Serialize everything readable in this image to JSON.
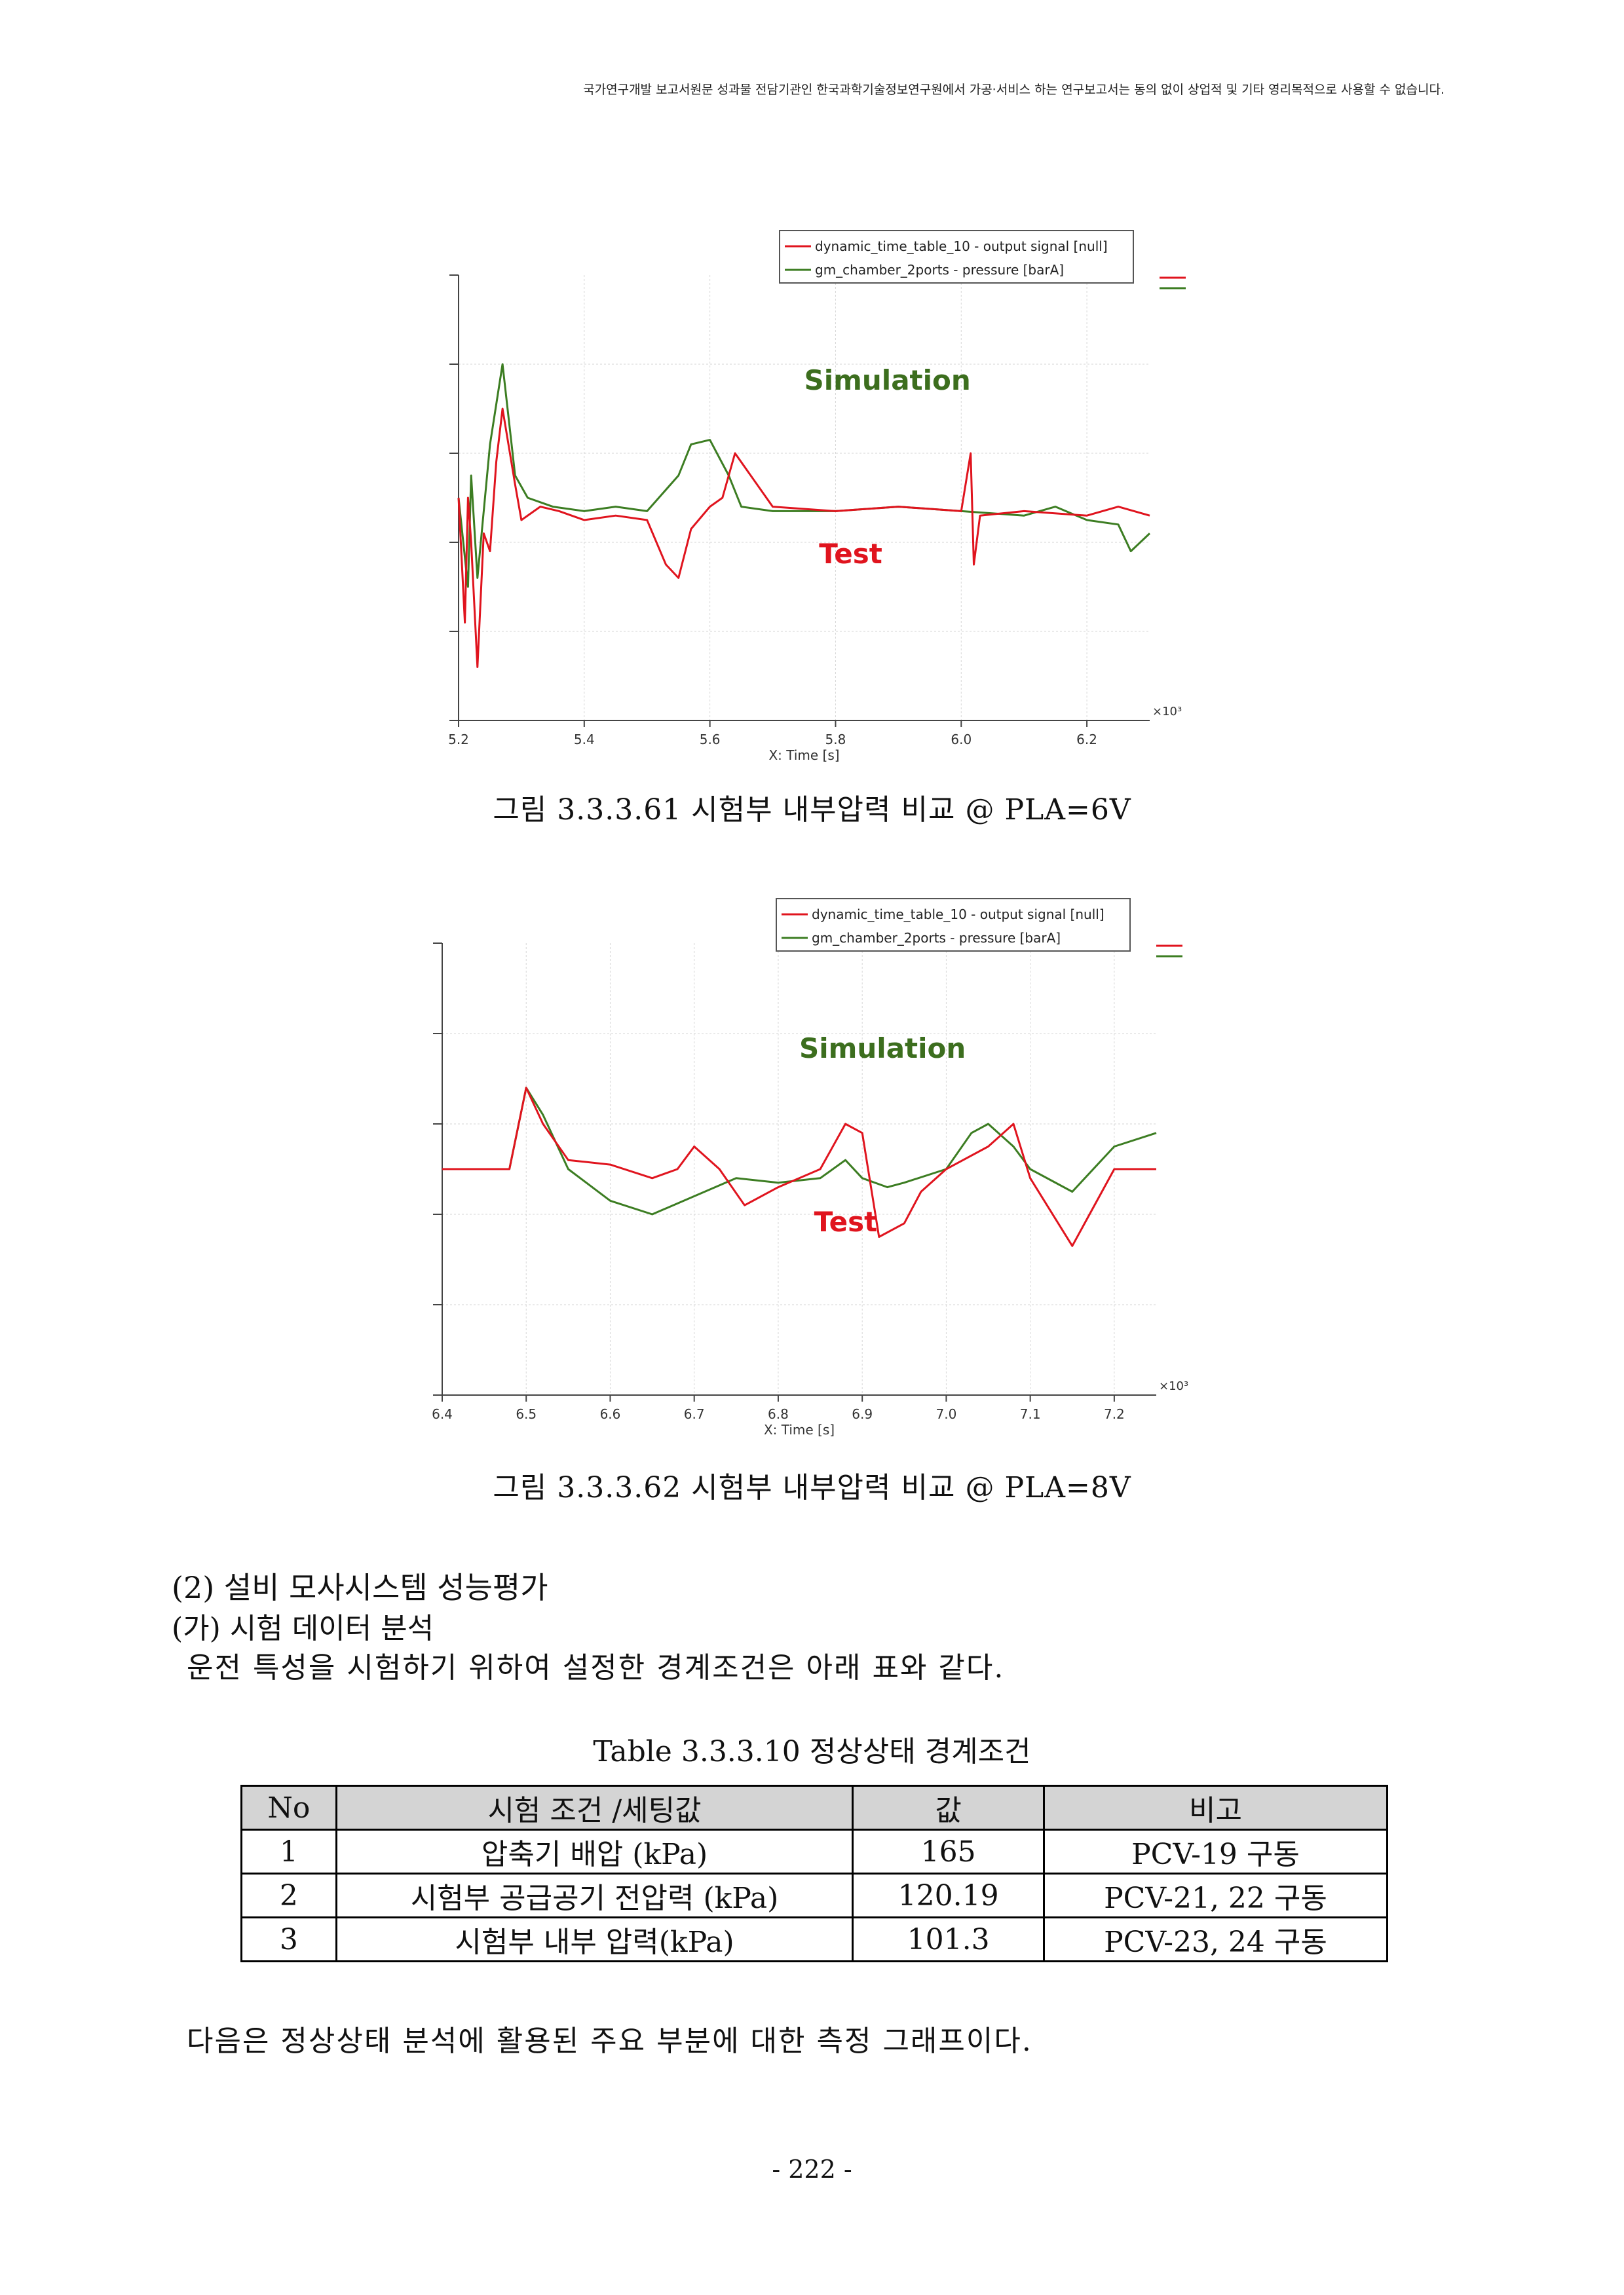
{
  "header_note": "국가연구개발 보고서원문 성과물 전담기관인 한국과학기술정보연구원에서 가공·서비스 하는 연구보고서는 동의 없이 상업적 및 기타 영리목적으로 사용할 수 없습니다.",
  "chart_data": [
    {
      "type": "line",
      "xlabel": "X: Time [s]",
      "x_multiplier": "×10³",
      "xlim": [
        5.2,
        6.3
      ],
      "x_ticks": [
        "5.2",
        "5.4",
        "5.6",
        "5.8",
        "6.0",
        "6.2"
      ],
      "grid": true,
      "legend_position": "top-right",
      "annotations": [
        "Simulation",
        "Test"
      ],
      "series": [
        {
          "name": "dynamic_time_table_10 - output signal [null]",
          "color": "#e0141e",
          "x": [
            5.2,
            5.21,
            5.215,
            5.22,
            5.23,
            5.24,
            5.25,
            5.26,
            5.27,
            5.29,
            5.3,
            5.33,
            5.36,
            5.4,
            5.45,
            5.5,
            5.53,
            5.55,
            5.57,
            5.6,
            5.62,
            5.64,
            5.7,
            5.8,
            5.9,
            6.0,
            6.015,
            6.02,
            6.03,
            6.1,
            6.2,
            6.25,
            6.3
          ],
          "y": [
            0.5,
            0.22,
            0.5,
            0.4,
            0.12,
            0.42,
            0.38,
            0.58,
            0.7,
            0.53,
            0.45,
            0.48,
            0.47,
            0.45,
            0.46,
            0.45,
            0.35,
            0.32,
            0.43,
            0.48,
            0.5,
            0.6,
            0.48,
            0.47,
            0.48,
            0.47,
            0.6,
            0.35,
            0.46,
            0.47,
            0.46,
            0.48,
            0.46
          ]
        },
        {
          "name": "gm_chamber_2ports - pressure [barA]",
          "color": "#3c7d22",
          "x": [
            5.2,
            5.215,
            5.22,
            5.23,
            5.25,
            5.27,
            5.29,
            5.31,
            5.35,
            5.4,
            5.45,
            5.5,
            5.55,
            5.57,
            5.6,
            5.63,
            5.65,
            5.7,
            5.8,
            5.9,
            6.0,
            6.1,
            6.15,
            6.2,
            6.25,
            6.27,
            6.3
          ],
          "y": [
            0.5,
            0.3,
            0.55,
            0.32,
            0.62,
            0.8,
            0.55,
            0.5,
            0.48,
            0.47,
            0.48,
            0.47,
            0.55,
            0.62,
            0.63,
            0.55,
            0.48,
            0.47,
            0.47,
            0.48,
            0.47,
            0.46,
            0.48,
            0.45,
            0.44,
            0.38,
            0.42
          ]
        }
      ]
    },
    {
      "type": "line",
      "xlabel": "X: Time [s]",
      "x_multiplier": "×10³",
      "xlim": [
        6.4,
        7.25
      ],
      "x_ticks": [
        "6.4",
        "6.5",
        "6.6",
        "6.7",
        "6.8",
        "6.9",
        "7.0",
        "7.1",
        "7.2"
      ],
      "grid": true,
      "legend_position": "top-right",
      "annotations": [
        "Simulation",
        "Test"
      ],
      "series": [
        {
          "name": "dynamic_time_table_10 - output signal [null]",
          "color": "#e0141e",
          "x": [
            6.4,
            6.48,
            6.5,
            6.52,
            6.55,
            6.6,
            6.65,
            6.68,
            6.7,
            6.73,
            6.76,
            6.8,
            6.85,
            6.88,
            6.9,
            6.92,
            6.95,
            6.97,
            7.0,
            7.05,
            7.08,
            7.1,
            7.15,
            7.2,
            7.25
          ],
          "y": [
            0.5,
            0.5,
            0.68,
            0.6,
            0.52,
            0.51,
            0.48,
            0.5,
            0.55,
            0.5,
            0.42,
            0.46,
            0.5,
            0.6,
            0.58,
            0.35,
            0.38,
            0.45,
            0.5,
            0.55,
            0.6,
            0.48,
            0.33,
            0.5,
            0.5
          ]
        },
        {
          "name": "gm_chamber_2ports - pressure [barA]",
          "color": "#3c7d22",
          "x": [
            6.4,
            6.48,
            6.5,
            6.52,
            6.55,
            6.6,
            6.65,
            6.7,
            6.75,
            6.8,
            6.85,
            6.88,
            6.9,
            6.93,
            6.95,
            7.0,
            7.03,
            7.05,
            7.08,
            7.1,
            7.15,
            7.2,
            7.25
          ],
          "y": [
            0.5,
            0.5,
            0.68,
            0.62,
            0.5,
            0.43,
            0.4,
            0.44,
            0.48,
            0.47,
            0.48,
            0.52,
            0.48,
            0.46,
            0.47,
            0.5,
            0.58,
            0.6,
            0.55,
            0.5,
            0.45,
            0.55,
            0.58
          ]
        }
      ]
    }
  ],
  "captions": [
    "그림 3.3.3.61 시험부 내부압력 비교 @ PLA=6V",
    "그림 3.3.3.62 시험부 내부압력 비교 @ PLA=8V"
  ],
  "section_heading": "(2) 설비 모사시스템 성능평가",
  "subsection_heading": "(가) 시험 데이터 분석",
  "intro_text": "운전 특성을 시험하기 위하여 설정한 경계조건은 아래 표와 같다.",
  "table_title": "Table 3.3.3.10 정상상태 경계조건",
  "table": {
    "headers": [
      "No",
      "시험 조건 /세팅값",
      "값",
      "비고"
    ],
    "rows": [
      [
        "1",
        "압축기 배압 (kPa)",
        "165",
        "PCV-19 구동"
      ],
      [
        "2",
        "시험부 공급공기 전압력 (kPa)",
        "120.19",
        "PCV-21, 22 구동"
      ],
      [
        "3",
        "시험부 내부 압력(kPa)",
        "101.3",
        "PCV-23, 24 구동"
      ]
    ]
  },
  "closing_text": "다음은 정상상태 분석에 활용된 주요 부분에 대한 측정 그래프이다.",
  "page_number": "- 222 -"
}
